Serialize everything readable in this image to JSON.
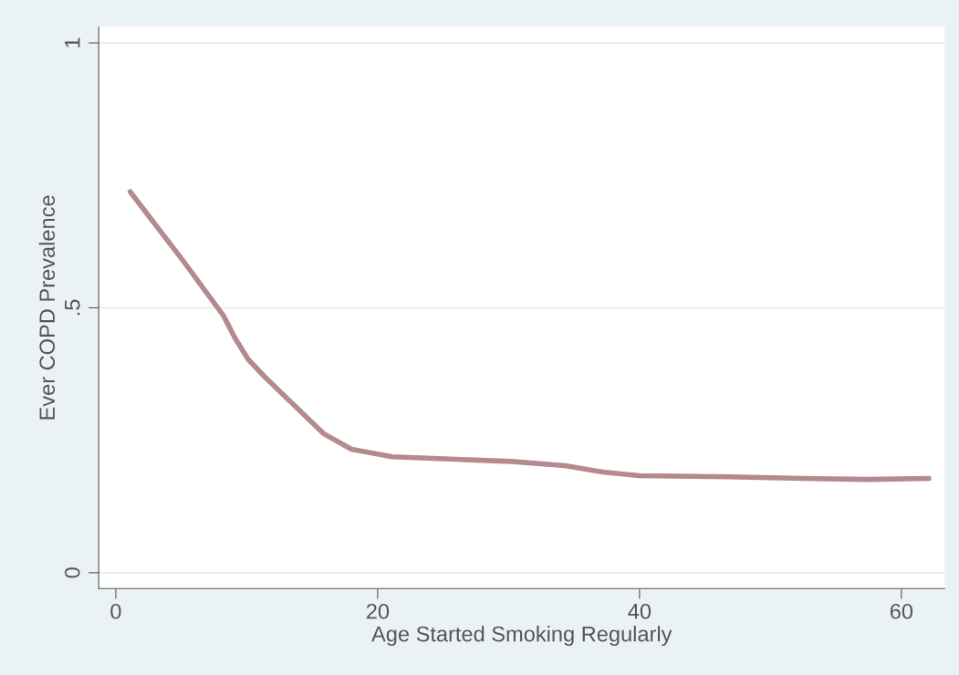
{
  "chart_data": {
    "type": "line",
    "xlabel": "Age Started Smoking Regularly",
    "ylabel": "Ever COPD Prevalence",
    "xlim": [
      -1.3,
      63.3
    ],
    "xticks": [
      0,
      20,
      40,
      60
    ],
    "ylim": [
      -0.03,
      1.03
    ],
    "yticks": [
      {
        "value": 0,
        "label": "0"
      },
      {
        "value": 0.5,
        "label": ".5"
      },
      {
        "value": 1,
        "label": "1"
      }
    ],
    "grid": "y",
    "line_style": "solid",
    "marker": "none",
    "series": [
      {
        "color": "#b48a8e",
        "x": [
          1.1,
          5.1,
          8.2,
          9.1,
          10.1,
          11.4,
          15.9,
          18,
          21.1,
          26,
          30.2,
          34.3,
          37.2,
          40,
          46.9,
          52.5,
          57.4,
          62.1
        ],
        "values": [
          0.719,
          0.59,
          0.486,
          0.443,
          0.403,
          0.369,
          0.262,
          0.233,
          0.219,
          0.214,
          0.21,
          0.202,
          0.19,
          0.183,
          0.181,
          0.178,
          0.176,
          0.178
        ]
      }
    ]
  }
}
